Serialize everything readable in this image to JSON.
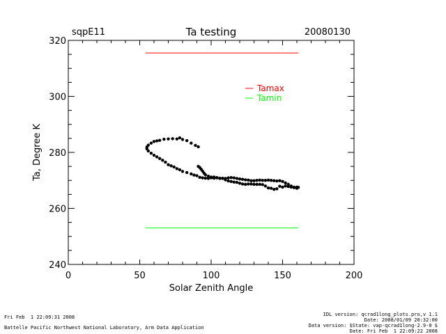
{
  "header": {
    "site": "sqpE11",
    "title": "Ta testing",
    "date": "20080130"
  },
  "footer": {
    "left_line1": "Fri Feb  1 22:09:31 2008",
    "left_line2": "Battelle Pacific Northwest National Laboratory, Arm Data Application",
    "right_line1": "IDL version: qcrad1long_plots.pro,v 1.1",
    "right_line2": "Date: 2008/01/09 20:32:00",
    "right_line3": "Data version: $State: vap-qcrad1long-2.9-0 $",
    "right_line4": "Date: Fri Feb  1 22:09:22 2008"
  },
  "chart_data": {
    "type": "scatter",
    "title": "Ta testing",
    "xlabel": "Solar Zenith Angle",
    "ylabel": "Ta, Degree K",
    "xlim": [
      0,
      200
    ],
    "ylim": [
      240,
      320
    ],
    "xticks": [
      0,
      50,
      100,
      150,
      200
    ],
    "yticks": [
      240,
      260,
      280,
      300,
      320
    ],
    "legend_position": "upper-right",
    "legend": [
      {
        "label": "Tamax",
        "color": "#ff0000"
      },
      {
        "label": "Tamin",
        "color": "#00ff00"
      }
    ],
    "reference_lines": [
      {
        "name": "Tamax",
        "y": 315.5,
        "x": [
          54,
          161
        ],
        "color": "#ff0000"
      },
      {
        "name": "Tamin",
        "y": 253,
        "x": [
          54,
          161
        ],
        "color": "#00ff00"
      }
    ],
    "series": [
      {
        "color": "#000000",
        "points": [
          [
            91,
            282
          ],
          [
            89,
            282.5
          ],
          [
            86,
            283.3
          ],
          [
            83,
            284.2
          ],
          [
            80,
            284.6
          ],
          [
            78,
            285.2
          ],
          [
            76,
            284.8
          ],
          [
            73,
            284.9
          ],
          [
            70,
            284.8
          ],
          [
            67,
            284.7
          ],
          [
            64,
            284.3
          ],
          [
            62,
            284.1
          ],
          [
            60,
            283.9
          ],
          [
            58,
            283.3
          ],
          [
            56,
            282.6
          ],
          [
            55,
            281.9
          ],
          [
            55,
            281.3
          ],
          [
            56,
            280.5
          ],
          [
            58,
            279.7
          ],
          [
            60,
            279
          ],
          [
            62,
            278.4
          ],
          [
            64,
            277.8
          ],
          [
            66,
            277.2
          ],
          [
            68,
            276.5
          ],
          [
            70,
            275.6
          ],
          [
            72,
            275.2
          ],
          [
            74,
            274.8
          ],
          [
            76,
            274.2
          ],
          [
            78,
            273.8
          ],
          [
            80,
            273.2
          ],
          [
            83,
            272.8
          ],
          [
            86,
            272.3
          ],
          [
            88,
            271.9
          ],
          [
            90,
            271.7
          ],
          [
            92,
            271.1
          ],
          [
            94,
            270.9
          ],
          [
            96,
            270.8
          ],
          [
            98,
            270.7
          ],
          [
            100,
            270.9
          ],
          [
            102,
            270.8
          ],
          [
            104,
            270.9
          ],
          [
            106,
            270.7
          ],
          [
            108,
            270.8
          ],
          [
            110,
            270.7
          ],
          [
            112,
            270.9
          ],
          [
            114,
            271
          ],
          [
            116,
            270.9
          ],
          [
            118,
            270.7
          ],
          [
            120,
            270.5
          ],
          [
            122,
            270.4
          ],
          [
            124,
            270.2
          ],
          [
            126,
            270.1
          ],
          [
            128,
            269.9
          ],
          [
            130,
            269.9
          ],
          [
            132,
            270
          ],
          [
            134,
            270.1
          ],
          [
            136,
            270
          ],
          [
            138,
            270
          ],
          [
            140,
            270.1
          ],
          [
            142,
            270
          ],
          [
            144,
            269.9
          ],
          [
            146,
            269.8
          ],
          [
            148,
            269.9
          ],
          [
            150,
            269.6
          ],
          [
            152,
            269.1
          ],
          [
            154,
            268.6
          ],
          [
            156,
            268
          ],
          [
            158,
            267.6
          ],
          [
            160,
            267.6
          ],
          [
            161,
            267.5
          ],
          [
            160,
            267.2
          ],
          [
            158,
            267.4
          ],
          [
            156,
            267.6
          ],
          [
            154,
            267.8
          ],
          [
            152,
            268
          ],
          [
            150,
            267.6
          ],
          [
            148,
            267.9
          ],
          [
            146,
            267
          ],
          [
            144,
            266.8
          ],
          [
            142,
            267.2
          ],
          [
            140,
            267.3
          ],
          [
            138,
            268
          ],
          [
            136,
            268.5
          ],
          [
            134,
            268.6
          ],
          [
            132,
            268.6
          ],
          [
            130,
            268.6
          ],
          [
            128,
            268.7
          ],
          [
            126,
            268.7
          ],
          [
            124,
            268.6
          ],
          [
            122,
            268.7
          ],
          [
            120,
            269
          ],
          [
            118,
            269.3
          ],
          [
            116,
            269.4
          ],
          [
            114,
            269.6
          ],
          [
            112,
            269.8
          ],
          [
            110,
            270.2
          ],
          [
            108,
            270.7
          ],
          [
            106,
            270.8
          ],
          [
            104,
            271
          ],
          [
            102,
            271.2
          ],
          [
            100,
            271.2
          ],
          [
            98,
            271.5
          ],
          [
            96,
            272
          ],
          [
            95,
            272.6
          ],
          [
            94,
            273.3
          ],
          [
            93,
            274
          ],
          [
            92,
            274.6
          ],
          [
            91,
            275
          ]
        ]
      }
    ]
  }
}
